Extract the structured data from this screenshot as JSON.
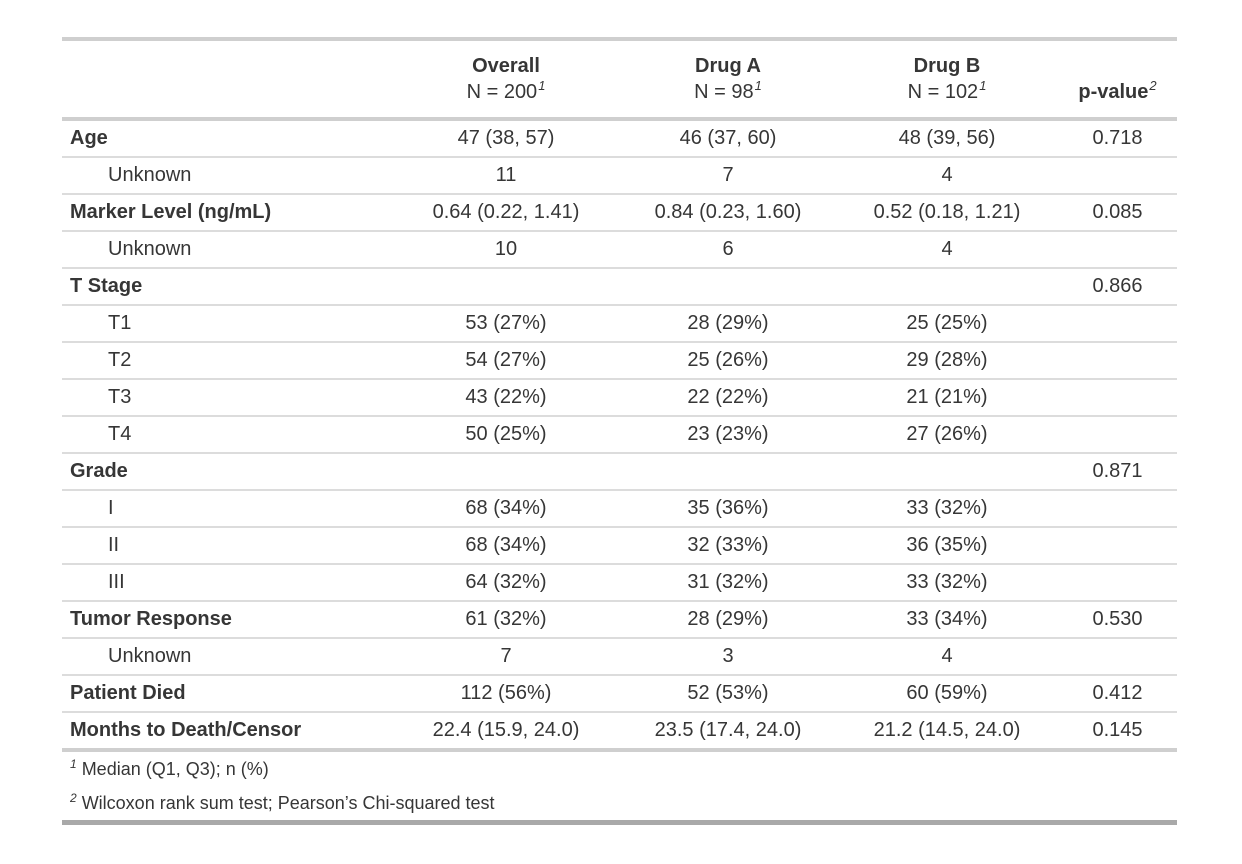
{
  "colors": {
    "text": "#363636",
    "section_border": "#cfcfcf",
    "row_border": "#dcdcdc",
    "table_bottom_border": "#a9a9a9",
    "background": "#ffffff"
  },
  "table": {
    "columns": [
      {
        "label": "",
        "sublabel": "",
        "footnote_mark": ""
      },
      {
        "label": "Overall",
        "sublabel": "N = 200",
        "footnote_mark": "1"
      },
      {
        "label": "Drug A",
        "sublabel": "N = 98",
        "footnote_mark": "1"
      },
      {
        "label": "Drug B",
        "sublabel": "N = 102",
        "footnote_mark": "1"
      },
      {
        "label": "p-value",
        "sublabel": "",
        "footnote_mark": "2"
      }
    ],
    "rows": [
      {
        "label": "Age",
        "bold": true,
        "indent": false,
        "overall": "47 (38, 57)",
        "drug_a": "46 (37, 60)",
        "drug_b": "48 (39, 56)",
        "p_value": "0.718"
      },
      {
        "label": "Unknown",
        "bold": false,
        "indent": true,
        "overall": "11",
        "drug_a": "7",
        "drug_b": "4",
        "p_value": ""
      },
      {
        "label": "Marker Level (ng/mL)",
        "bold": true,
        "indent": false,
        "overall": "0.64 (0.22, 1.41)",
        "drug_a": "0.84 (0.23, 1.60)",
        "drug_b": "0.52 (0.18, 1.21)",
        "p_value": "0.085"
      },
      {
        "label": "Unknown",
        "bold": false,
        "indent": true,
        "overall": "10",
        "drug_a": "6",
        "drug_b": "4",
        "p_value": ""
      },
      {
        "label": "T Stage",
        "bold": true,
        "indent": false,
        "overall": "",
        "drug_a": "",
        "drug_b": "",
        "p_value": "0.866"
      },
      {
        "label": "T1",
        "bold": false,
        "indent": true,
        "overall": "53 (27%)",
        "drug_a": "28 (29%)",
        "drug_b": "25 (25%)",
        "p_value": ""
      },
      {
        "label": "T2",
        "bold": false,
        "indent": true,
        "overall": "54 (27%)",
        "drug_a": "25 (26%)",
        "drug_b": "29 (28%)",
        "p_value": ""
      },
      {
        "label": "T3",
        "bold": false,
        "indent": true,
        "overall": "43 (22%)",
        "drug_a": "22 (22%)",
        "drug_b": "21 (21%)",
        "p_value": ""
      },
      {
        "label": "T4",
        "bold": false,
        "indent": true,
        "overall": "50 (25%)",
        "drug_a": "23 (23%)",
        "drug_b": "27 (26%)",
        "p_value": ""
      },
      {
        "label": "Grade",
        "bold": true,
        "indent": false,
        "overall": "",
        "drug_a": "",
        "drug_b": "",
        "p_value": "0.871"
      },
      {
        "label": "I",
        "bold": false,
        "indent": true,
        "overall": "68 (34%)",
        "drug_a": "35 (36%)",
        "drug_b": "33 (32%)",
        "p_value": ""
      },
      {
        "label": "II",
        "bold": false,
        "indent": true,
        "overall": "68 (34%)",
        "drug_a": "32 (33%)",
        "drug_b": "36 (35%)",
        "p_value": ""
      },
      {
        "label": "III",
        "bold": false,
        "indent": true,
        "overall": "64 (32%)",
        "drug_a": "31 (32%)",
        "drug_b": "33 (32%)",
        "p_value": ""
      },
      {
        "label": "Tumor Response",
        "bold": true,
        "indent": false,
        "overall": "61 (32%)",
        "drug_a": "28 (29%)",
        "drug_b": "33 (34%)",
        "p_value": "0.530"
      },
      {
        "label": "Unknown",
        "bold": false,
        "indent": true,
        "overall": "7",
        "drug_a": "3",
        "drug_b": "4",
        "p_value": ""
      },
      {
        "label": "Patient Died",
        "bold": true,
        "indent": false,
        "overall": "112 (56%)",
        "drug_a": "52 (53%)",
        "drug_b": "60 (59%)",
        "p_value": "0.412"
      },
      {
        "label": "Months to Death/Censor",
        "bold": true,
        "indent": false,
        "overall": "22.4 (15.9, 24.0)",
        "drug_a": "23.5 (17.4, 24.0)",
        "drug_b": "21.2 (14.5, 24.0)",
        "p_value": "0.145"
      }
    ],
    "footnotes": [
      {
        "mark": "1",
        "text": "Median (Q1, Q3); n (%)"
      },
      {
        "mark": "2",
        "text": "Wilcoxon rank sum test; Pearson’s Chi-squared test"
      }
    ]
  }
}
